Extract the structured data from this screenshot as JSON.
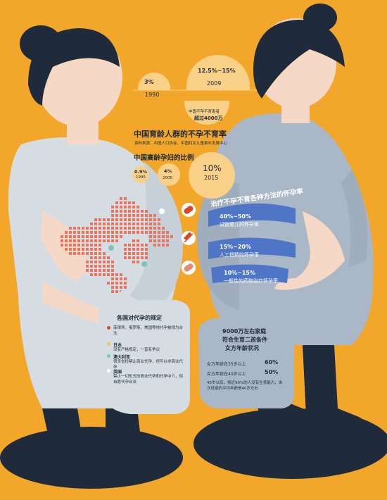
{
  "palette": {
    "background": "#F2A72A",
    "navy": "#1f2b3b",
    "dress_left": "#d5dde3",
    "dress_right": "#aab7c6",
    "skin": "#f6d8c6",
    "accent_red": "#d9472b",
    "blue_band": "#4f76c6"
  },
  "stats_infertility": {
    "rate_1990": "3%",
    "year_1990": "1990",
    "rate_2009": "12.5%~15%",
    "year_2009": "2009",
    "patients_label": "中国不孕不育患者",
    "patients_value": "超过4000万",
    "title": "中国育龄人群的不孕不育率",
    "source": "资料来源：中国人口协会、中国妇女儿童事业发展中心"
  },
  "older_pregnancy": {
    "title": "中国高龄孕妇的比例",
    "items": [
      {
        "value": "0.9%",
        "year": "1995"
      },
      {
        "value": "4%",
        "year": "2005"
      },
      {
        "value": "10%",
        "year": "2015"
      }
    ]
  },
  "treatment": {
    "title": "治疗不孕不育各种方法的怀孕率",
    "items": [
      {
        "pct": "40%~50%",
        "label": "试管婴儿的怀孕率",
        "icon": "pill-icon"
      },
      {
        "pct": "15%~20%",
        "label": "人工授精的怀孕率",
        "icon": "syringe-icon"
      },
      {
        "pct": "10%~15%",
        "label": "一般性的药物治疗怀孕率",
        "icon": "capsule-icon"
      }
    ]
  },
  "surrogacy": {
    "title": "各国对代孕的规定",
    "items": [
      {
        "country": "",
        "text": "菲律宾、俄罗斯、美国等地代孕被视为合法",
        "color": "#d9472b"
      },
      {
        "country": "日本",
        "text": "没有严格规定，一直有争议",
        "color": "#f3c16a"
      },
      {
        "country": "澳大利亚",
        "text": "很多省份禁止商业代孕，但可以非商业代孕",
        "color": "#7ec3b4"
      },
      {
        "country": "英国",
        "text": "禁止一切形式的商业代孕和代孕中介，但自愿代孕合法",
        "color": "#ffffff"
      }
    ]
  },
  "second_child": {
    "title_line1": "9000万左右家庭",
    "title_line2": "符合生育二孩条件",
    "title_line3": "女方年龄状况",
    "rows": [
      {
        "label": "女方年龄在35岁以上",
        "value": "60%"
      },
      {
        "label": "女方年龄在40岁以上",
        "value": "50%"
      }
    ],
    "note": "45岁以后，将近90%的人没有生育能力，末次妊娠的平均年龄是40岁左右"
  }
}
